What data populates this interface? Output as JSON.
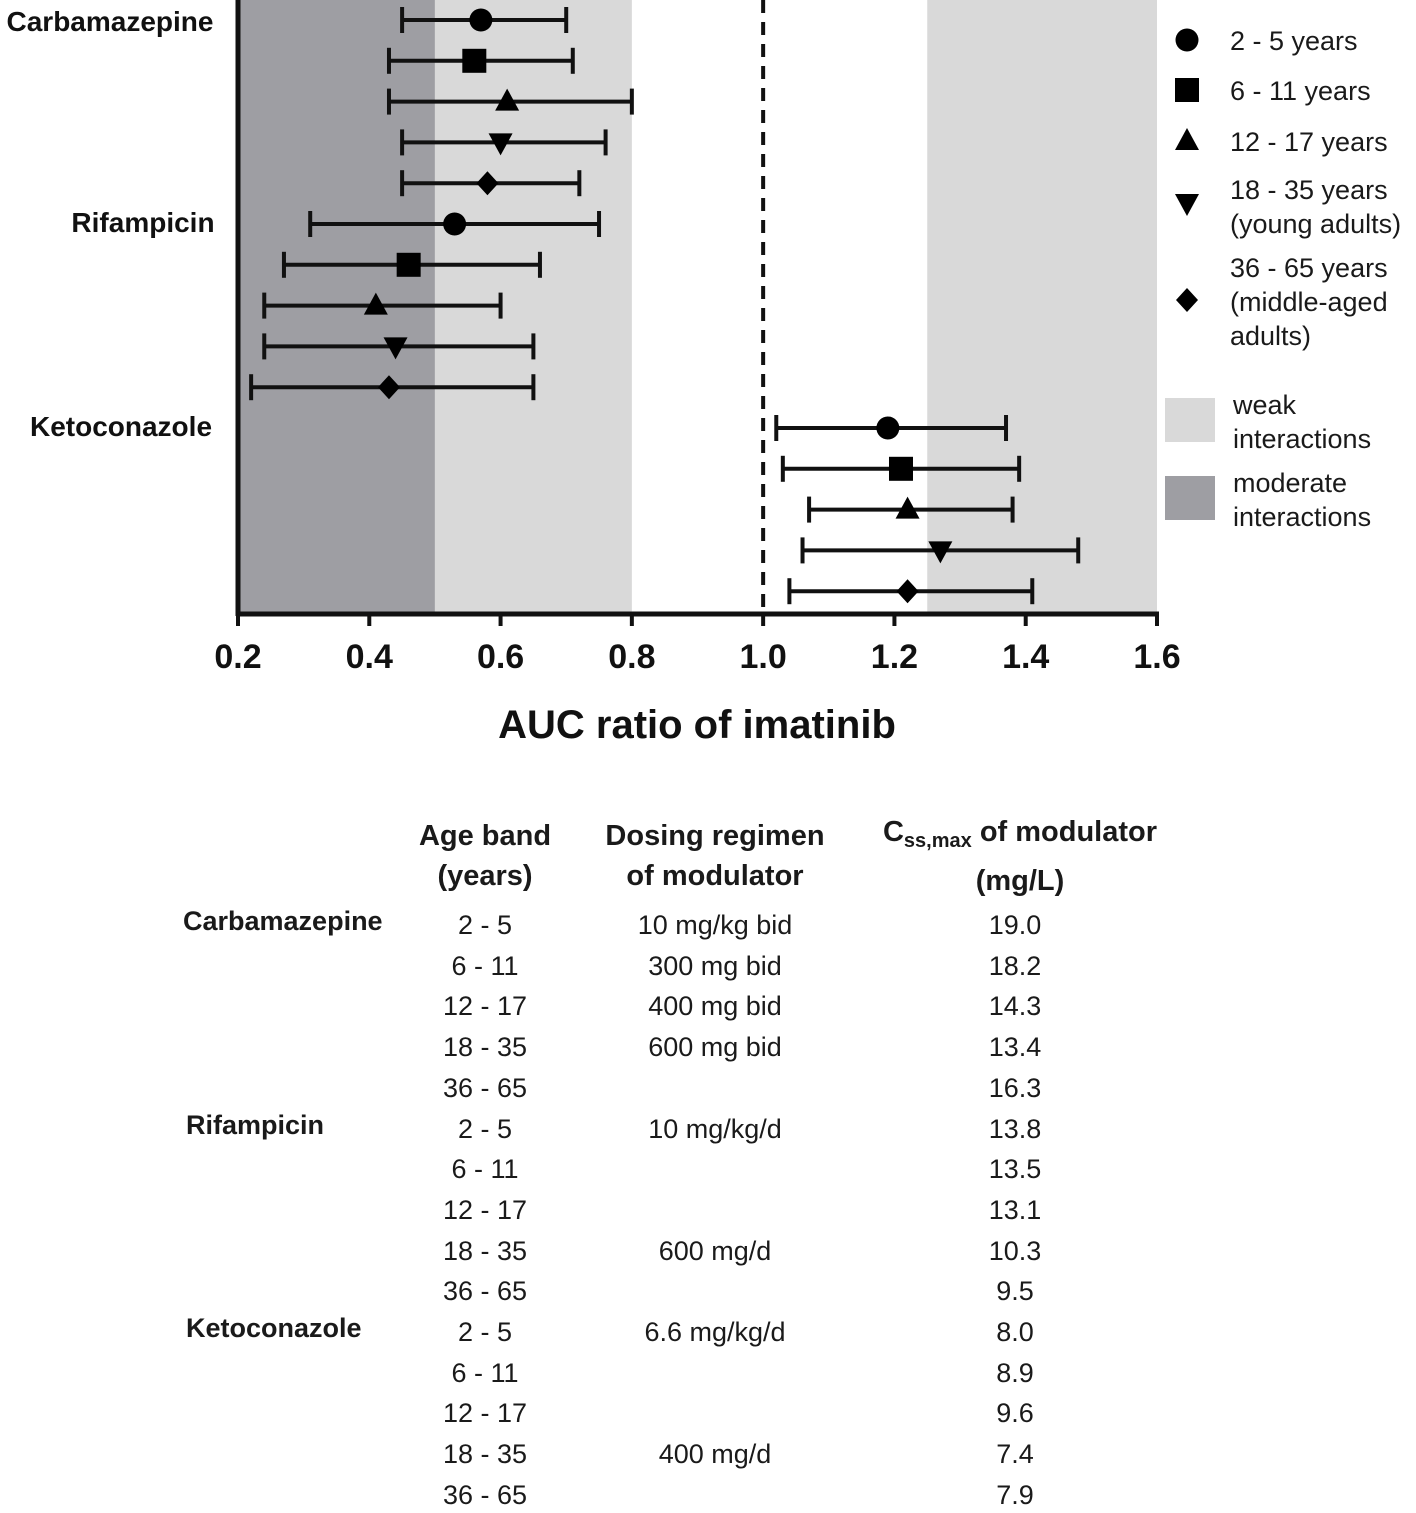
{
  "chart_data": {
    "type": "forest",
    "xlabel": "AUC ratio of imatinib",
    "xlim": [
      0.2,
      1.6
    ],
    "xticks": [
      "0.2",
      "0.4",
      "0.6",
      "0.8",
      "1.0",
      "1.2",
      "1.4",
      "1.6"
    ],
    "reference_line": 1.0,
    "shaded_regions": [
      {
        "label": "moderate interactions",
        "from": 0.2,
        "to": 0.5,
        "color": "#9e9ea3"
      },
      {
        "label": "weak interactions",
        "from": 0.5,
        "to": 0.8,
        "color": "#d9d9d9"
      },
      {
        "label": "weak interactions",
        "from": 1.25,
        "to": 1.6,
        "color": "#d9d9d9"
      }
    ],
    "age_groups": [
      {
        "key": "g1",
        "label": "2 - 5 years",
        "marker": "circle"
      },
      {
        "key": "g2",
        "label": "6 - 11 years",
        "marker": "square"
      },
      {
        "key": "g3",
        "label": "12 - 17 years",
        "marker": "triangle-up"
      },
      {
        "key": "g4",
        "label": "18 - 35 years (young adults)",
        "marker": "triangle-down"
      },
      {
        "key": "g5",
        "label": "36 - 65 years (middle-aged adults)",
        "marker": "diamond"
      }
    ],
    "drugs": [
      {
        "name": "Carbamazepine",
        "points": [
          {
            "mean": 0.57,
            "low": 0.45,
            "high": 0.7
          },
          {
            "mean": 0.56,
            "low": 0.43,
            "high": 0.71
          },
          {
            "mean": 0.61,
            "low": 0.43,
            "high": 0.8
          },
          {
            "mean": 0.6,
            "low": 0.45,
            "high": 0.76
          },
          {
            "mean": 0.58,
            "low": 0.45,
            "high": 0.72
          }
        ]
      },
      {
        "name": "Rifampicin",
        "points": [
          {
            "mean": 0.53,
            "low": 0.31,
            "high": 0.75
          },
          {
            "mean": 0.46,
            "low": 0.27,
            "high": 0.66
          },
          {
            "mean": 0.41,
            "low": 0.24,
            "high": 0.6
          },
          {
            "mean": 0.44,
            "low": 0.24,
            "high": 0.65
          },
          {
            "mean": 0.43,
            "low": 0.22,
            "high": 0.65
          }
        ]
      },
      {
        "name": "Ketoconazole",
        "points": [
          {
            "mean": 1.19,
            "low": 1.02,
            "high": 1.37
          },
          {
            "mean": 1.21,
            "low": 1.03,
            "high": 1.39
          },
          {
            "mean": 1.22,
            "low": 1.07,
            "high": 1.38
          },
          {
            "mean": 1.27,
            "low": 1.06,
            "high": 1.48
          },
          {
            "mean": 1.22,
            "low": 1.04,
            "high": 1.41
          }
        ]
      }
    ]
  },
  "legend": {
    "groups": [
      {
        "lines": [
          "2 - 5 years"
        ]
      },
      {
        "lines": [
          "6 - 11 years"
        ]
      },
      {
        "lines": [
          "12 - 17 years"
        ]
      },
      {
        "lines": [
          "18 - 35 years",
          "(young adults)"
        ]
      },
      {
        "lines": [
          "36 - 65 years",
          "(middle-aged",
          "adults)"
        ]
      }
    ],
    "regions": [
      {
        "lines": [
          "weak",
          "interactions"
        ],
        "color": "#d9d9d9"
      },
      {
        "lines": [
          "moderate",
          "interactions"
        ],
        "color": "#9e9ea3"
      }
    ]
  },
  "table": {
    "headers": {
      "age": [
        "Age band",
        "(years)"
      ],
      "dose": [
        "Dosing regimen",
        "of modulator"
      ],
      "css_prefix": "C",
      "css_sub": "ss,max",
      "css_suffix": " of modulator",
      "css_unit": "(mg/L)"
    },
    "drugs": [
      {
        "name": "Carbamazepine",
        "rows": [
          {
            "age": "2 - 5",
            "dose": "10 mg/kg bid",
            "css": "19.0"
          },
          {
            "age": "6 - 11",
            "dose": "300 mg bid",
            "css": "18.2"
          },
          {
            "age": "12 - 17",
            "dose": "400 mg bid",
            "css": "14.3"
          },
          {
            "age": "18 - 35",
            "dose": "600 mg bid",
            "css": "13.4"
          },
          {
            "age": "36 - 65",
            "dose": "",
            "css": "16.3"
          }
        ]
      },
      {
        "name": "Rifampicin",
        "rows": [
          {
            "age": "2 - 5",
            "dose": "10 mg/kg/d",
            "css": "13.8"
          },
          {
            "age": "6 - 11",
            "dose": "",
            "css": "13.5"
          },
          {
            "age": "12 - 17",
            "dose": "",
            "css": "13.1"
          },
          {
            "age": "18 - 35",
            "dose": "600 mg/d",
            "css": "10.3"
          },
          {
            "age": "36 - 65",
            "dose": "",
            "css": "9.5"
          }
        ]
      },
      {
        "name": "Ketoconazole",
        "rows": [
          {
            "age": "2 - 5",
            "dose": "6.6 mg/kg/d",
            "css": "8.0"
          },
          {
            "age": "6 - 11",
            "dose": "",
            "css": "8.9"
          },
          {
            "age": "12 - 17",
            "dose": "",
            "css": "9.6"
          },
          {
            "age": "18 - 35",
            "dose": "400 mg/d",
            "css": "7.4"
          },
          {
            "age": "36 - 65",
            "dose": "",
            "css": "7.9"
          }
        ]
      }
    ]
  }
}
